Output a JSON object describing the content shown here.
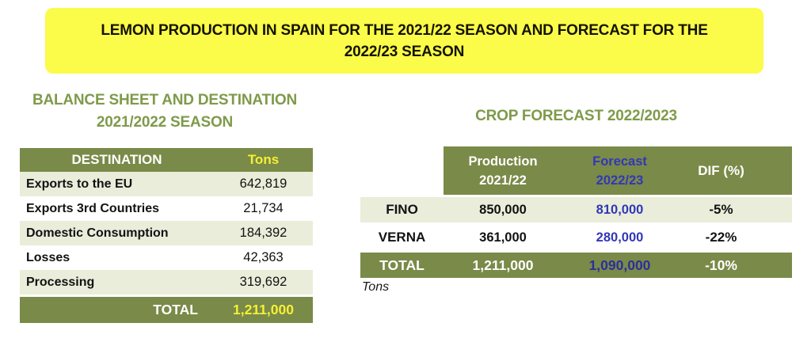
{
  "banner": {
    "title_lines": [
      "LEMON PRODUCTION IN SPAIN FOR THE 2021/22 SEASON AND FORECAST FOR THE",
      "2022/23 SEASON"
    ],
    "bg_color": "#fbfb4a"
  },
  "balance_table": {
    "title_lines": [
      "BALANCE SHEET AND DESTINATION",
      "2021/2022 SEASON"
    ],
    "headers": {
      "destination": "DESTINATION",
      "tons": "Tons"
    },
    "rows": [
      {
        "label": "Exports to the EU",
        "value": "642,819"
      },
      {
        "label": "Exports 3rd Countries",
        "value": "21,734"
      },
      {
        "label": "Domestic Consumption",
        "value": "184,392"
      },
      {
        "label": "Losses",
        "value": "42,363"
      },
      {
        "label": "Processing",
        "value": "319,692"
      }
    ],
    "total": {
      "label": "TOTAL",
      "value": "1,211,000"
    }
  },
  "forecast_table": {
    "title": "CROP FORECAST 2022/2023",
    "headers": {
      "production_line1": "Production",
      "production_line2": "2021/22",
      "forecast_line1": "Forecast",
      "forecast_line2": "2022/23",
      "dif": "DIF (%)"
    },
    "rows": [
      {
        "label": "FINO",
        "production": "850,000",
        "forecast": "810,000",
        "dif": "-5%"
      },
      {
        "label": "VERNA",
        "production": "361,000",
        "forecast": "280,000",
        "dif": "-22%"
      }
    ],
    "total": {
      "label": "TOTAL",
      "production": "1,211,000",
      "forecast": "1,090,000",
      "dif": "-10%"
    },
    "footnote": "Tons"
  },
  "colors": {
    "olive_header": "#7a8a48",
    "light_row": "#e9edda",
    "title_green": "#7f9a4a",
    "banner_yellow": "#fbfb4a",
    "accent_yellow_text": "#f5f035",
    "forecast_blue": "#3137b8",
    "total_forecast_blue": "#2b2f9c"
  }
}
